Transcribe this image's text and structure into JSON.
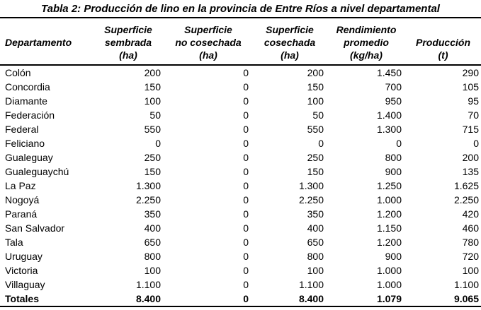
{
  "title": "Tabla 2: Producción de lino en la provincia de Entre Ríos a nivel departamental",
  "table": {
    "columns": [
      {
        "id": "departamento",
        "label": "Departamento"
      },
      {
        "id": "superficie-sembrada",
        "label": "Superficie\nsembrada\n(ha)"
      },
      {
        "id": "superficie-no-cosechada",
        "label": "Superficie\nno cosechada\n(ha)"
      },
      {
        "id": "superficie-cosechada",
        "label": "Superficie\ncosechada\n(ha)"
      },
      {
        "id": "rendimiento-promedio",
        "label": "Rendimiento\npromedio\n(kg/ha)"
      },
      {
        "id": "produccion",
        "label": "Producción\n(t)"
      }
    ],
    "rows": [
      [
        "Colón",
        "200",
        "0",
        "200",
        "1.450",
        "290"
      ],
      [
        "Concordia",
        "150",
        "0",
        "150",
        "700",
        "105"
      ],
      [
        "Diamante",
        "100",
        "0",
        "100",
        "950",
        "95"
      ],
      [
        "Federación",
        "50",
        "0",
        "50",
        "1.400",
        "70"
      ],
      [
        "Federal",
        "550",
        "0",
        "550",
        "1.300",
        "715"
      ],
      [
        "Feliciano",
        "0",
        "0",
        "0",
        "0",
        "0"
      ],
      [
        "Gualeguay",
        "250",
        "0",
        "250",
        "800",
        "200"
      ],
      [
        "Gualeguaychú",
        "150",
        "0",
        "150",
        "900",
        "135"
      ],
      [
        "La Paz",
        "1.300",
        "0",
        "1.300",
        "1.250",
        "1.625"
      ],
      [
        "Nogoyá",
        "2.250",
        "0",
        "2.250",
        "1.000",
        "2.250"
      ],
      [
        "Paraná",
        "350",
        "0",
        "350",
        "1.200",
        "420"
      ],
      [
        "San Salvador",
        "400",
        "0",
        "400",
        "1.150",
        "460"
      ],
      [
        "Tala",
        "650",
        "0",
        "650",
        "1.200",
        "780"
      ],
      [
        "Uruguay",
        "800",
        "0",
        "800",
        "900",
        "720"
      ],
      [
        "Victoria",
        "100",
        "0",
        "100",
        "1.000",
        "100"
      ],
      [
        "Villaguay",
        "1.100",
        "0",
        "1.100",
        "1.000",
        "1.100"
      ]
    ],
    "totals": [
      "Totales",
      "8.400",
      "0",
      "8.400",
      "1.079",
      "9.065"
    ]
  }
}
